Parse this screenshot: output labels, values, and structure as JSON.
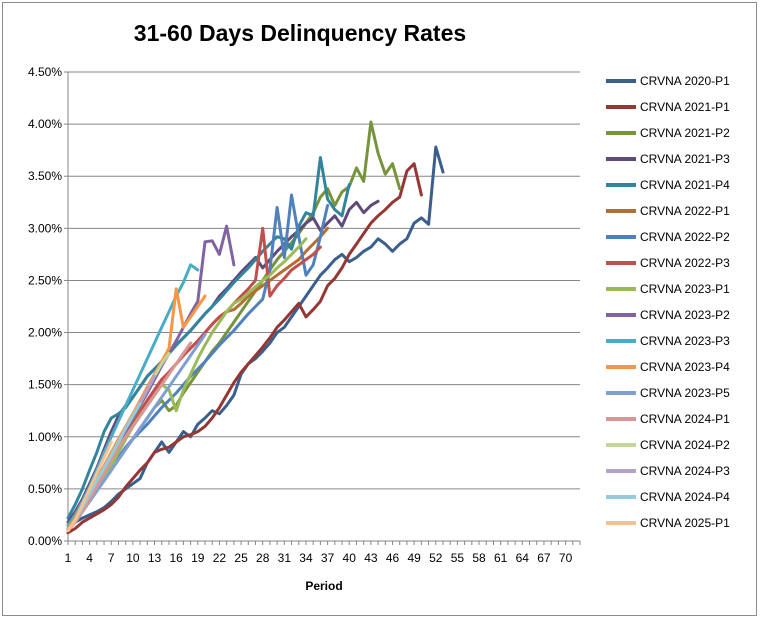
{
  "chart_data": {
    "type": "line",
    "title": "31-60 Days Delinquency Rates",
    "xlabel": "Period",
    "ylabel": "",
    "ylim": [
      0,
      0.045
    ],
    "yticks": [
      "0.00%",
      "0.50%",
      "1.00%",
      "1.50%",
      "2.00%",
      "2.50%",
      "3.00%",
      "3.50%",
      "4.00%",
      "4.50%"
    ],
    "xticks": [
      "1",
      "4",
      "7",
      "10",
      "13",
      "16",
      "19",
      "22",
      "25",
      "28",
      "31",
      "34",
      "37",
      "40",
      "43",
      "46",
      "49",
      "52",
      "55",
      "58",
      "61",
      "64",
      "67",
      "70"
    ],
    "grid": "horizontal",
    "legend_position": "right",
    "series": [
      {
        "name": "CRVNA 2020-P1",
        "color": "#3b5f8c",
        "values": [
          0.0012,
          0.0018,
          0.0022,
          0.0025,
          0.0028,
          0.0032,
          0.0038,
          0.0045,
          0.005,
          0.0055,
          0.006,
          0.0075,
          0.0085,
          0.0095,
          0.0085,
          0.0095,
          0.0105,
          0.01,
          0.0112,
          0.0118,
          0.0125,
          0.0122,
          0.013,
          0.014,
          0.016,
          0.017,
          0.0175,
          0.0182,
          0.019,
          0.02,
          0.0205,
          0.0215,
          0.0225,
          0.0235,
          0.0245,
          0.0255,
          0.0262,
          0.027,
          0.0275,
          0.0268,
          0.0272,
          0.0278,
          0.0282,
          0.029,
          0.0285,
          0.0278,
          0.0285,
          0.029,
          0.0305,
          0.031,
          0.0304,
          0.0378,
          0.0354
        ]
      },
      {
        "name": "CRVNA 2021-P1",
        "color": "#953735",
        "values": [
          0.0008,
          0.0012,
          0.0018,
          0.0022,
          0.0026,
          0.003,
          0.0035,
          0.0042,
          0.0052,
          0.006,
          0.0068,
          0.0075,
          0.0085,
          0.0088,
          0.009,
          0.0095,
          0.01,
          0.0102,
          0.0105,
          0.011,
          0.0118,
          0.0128,
          0.014,
          0.0152,
          0.0162,
          0.017,
          0.0178,
          0.0186,
          0.0195,
          0.0205,
          0.0212,
          0.022,
          0.0228,
          0.0215,
          0.0222,
          0.023,
          0.0245,
          0.0252,
          0.0262,
          0.0275,
          0.0285,
          0.0295,
          0.0305,
          0.0312,
          0.0318,
          0.0325,
          0.033,
          0.0355,
          0.0362,
          0.0332
        ]
      },
      {
        "name": "CRVNA 2021-P2",
        "color": "#77933c",
        "values": [
          0.0015,
          0.0022,
          0.003,
          0.0038,
          0.0048,
          0.0058,
          0.0068,
          0.0078,
          0.0088,
          0.0098,
          0.0108,
          0.0118,
          0.0128,
          0.0135,
          0.0125,
          0.013,
          0.0142,
          0.0152,
          0.0162,
          0.0172,
          0.0182,
          0.019,
          0.02,
          0.021,
          0.022,
          0.023,
          0.024,
          0.025,
          0.026,
          0.027,
          0.0278,
          0.0286,
          0.0295,
          0.0305,
          0.0315,
          0.033,
          0.0338,
          0.0322,
          0.0335,
          0.034,
          0.0358,
          0.0345,
          0.0402,
          0.0372,
          0.0352,
          0.0362,
          0.0338
        ]
      },
      {
        "name": "CRVNA 2021-P3",
        "color": "#604a7b",
        "values": [
          0.0018,
          0.0028,
          0.004,
          0.0055,
          0.007,
          0.0088,
          0.0105,
          0.012,
          0.013,
          0.0138,
          0.0148,
          0.0158,
          0.0165,
          0.0172,
          0.018,
          0.0188,
          0.0195,
          0.0202,
          0.021,
          0.0218,
          0.0225,
          0.0235,
          0.0242,
          0.025,
          0.0258,
          0.0265,
          0.0272,
          0.0262,
          0.027,
          0.0278,
          0.0285,
          0.0292,
          0.0298,
          0.0305,
          0.031,
          0.0298,
          0.0305,
          0.0312,
          0.0302,
          0.0318,
          0.0325,
          0.0315,
          0.0322,
          0.0326
        ]
      },
      {
        "name": "CRVNA 2021-P4",
        "color": "#31859c",
        "values": [
          0.0022,
          0.0035,
          0.005,
          0.0068,
          0.0085,
          0.0105,
          0.0118,
          0.0122,
          0.0128,
          0.0138,
          0.0148,
          0.0158,
          0.0165,
          0.0172,
          0.018,
          0.0188,
          0.0195,
          0.0202,
          0.021,
          0.0218,
          0.0225,
          0.0232,
          0.024,
          0.0248,
          0.0255,
          0.0262,
          0.027,
          0.0278,
          0.0285,
          0.0292,
          0.029,
          0.028,
          0.0302,
          0.0315,
          0.0312,
          0.0368,
          0.0328,
          0.0318,
          0.0312,
          0.0342
        ]
      },
      {
        "name": "CRVNA 2022-P1",
        "color": "#b66d31",
        "values": [
          0.0015,
          0.0025,
          0.0035,
          0.0048,
          0.006,
          0.0072,
          0.0085,
          0.0095,
          0.0105,
          0.0115,
          0.0125,
          0.0135,
          0.0145,
          0.0155,
          0.0162,
          0.017,
          0.0178,
          0.0185,
          0.0192,
          0.02,
          0.0208,
          0.0215,
          0.022,
          0.0222,
          0.0228,
          0.0235,
          0.024,
          0.0245,
          0.025,
          0.0255,
          0.026,
          0.0265,
          0.027,
          0.0278,
          0.0285,
          0.0292,
          0.03
        ]
      },
      {
        "name": "CRVNA 2022-P2",
        "color": "#4f81bd",
        "values": [
          0.0012,
          0.002,
          0.003,
          0.004,
          0.005,
          0.006,
          0.007,
          0.008,
          0.009,
          0.0098,
          0.0105,
          0.0112,
          0.012,
          0.0128,
          0.0135,
          0.0142,
          0.015,
          0.0158,
          0.0165,
          0.0172,
          0.018,
          0.0188,
          0.0195,
          0.0202,
          0.021,
          0.0218,
          0.0225,
          0.0232,
          0.026,
          0.032,
          0.0272,
          0.0332,
          0.0292,
          0.0255,
          0.0265,
          0.0292,
          0.0322
        ]
      },
      {
        "name": "CRVNA 2022-P3",
        "color": "#c0504d",
        "values": [
          0.0012,
          0.002,
          0.003,
          0.004,
          0.005,
          0.006,
          0.0072,
          0.0085,
          0.0098,
          0.011,
          0.0122,
          0.0135,
          0.0145,
          0.0155,
          0.0162,
          0.017,
          0.0178,
          0.0185,
          0.0192,
          0.02,
          0.0208,
          0.0215,
          0.022,
          0.0228,
          0.0235,
          0.0242,
          0.025,
          0.03,
          0.0235,
          0.0245,
          0.0252,
          0.026,
          0.0265,
          0.027,
          0.0275,
          0.0282
        ]
      },
      {
        "name": "CRVNA 2023-P1",
        "color": "#9bbb59",
        "values": [
          0.0012,
          0.002,
          0.003,
          0.004,
          0.005,
          0.006,
          0.0072,
          0.0085,
          0.0098,
          0.011,
          0.012,
          0.013,
          0.014,
          0.015,
          0.0145,
          0.0125,
          0.0145,
          0.016,
          0.0175,
          0.0188,
          0.02,
          0.021,
          0.022,
          0.0228,
          0.0232,
          0.0238,
          0.0244,
          0.025,
          0.0255,
          0.0262,
          0.0268,
          0.0275,
          0.0282,
          0.029
        ]
      },
      {
        "name": "CRVNA 2023-P2",
        "color": "#8064a2",
        "values": [
          0.0012,
          0.002,
          0.003,
          0.0042,
          0.0055,
          0.0068,
          0.008,
          0.0092,
          0.0105,
          0.0118,
          0.013,
          0.0142,
          0.0155,
          0.0168,
          0.018,
          0.0192,
          0.0205,
          0.0218,
          0.023,
          0.0287,
          0.0288,
          0.0275,
          0.0302,
          0.0265
        ]
      },
      {
        "name": "CRVNA 2023-P3",
        "color": "#4bacc6",
        "values": [
          0.0015,
          0.0025,
          0.0038,
          0.0052,
          0.0068,
          0.0085,
          0.01,
          0.0115,
          0.013,
          0.0145,
          0.016,
          0.0175,
          0.019,
          0.0205,
          0.022,
          0.0235,
          0.0248,
          0.0265,
          0.026
        ]
      },
      {
        "name": "CRVNA 2023-P4",
        "color": "#f79646",
        "values": [
          0.0012,
          0.0022,
          0.0035,
          0.0048,
          0.006,
          0.0072,
          0.0085,
          0.0098,
          0.011,
          0.0122,
          0.0135,
          0.0148,
          0.016,
          0.0172,
          0.0185,
          0.0242,
          0.0205,
          0.0215,
          0.0225,
          0.0235
        ]
      },
      {
        "name": "CRVNA 2023-P5",
        "color": "#7f9fd4",
        "values": [
          0.001,
          0.0018,
          0.0028,
          0.0038,
          0.0048,
          0.0058,
          0.0068,
          0.0078,
          0.0088,
          0.0098,
          0.0108,
          0.0118,
          0.0128,
          0.0138,
          0.0148,
          0.0158,
          0.0168,
          0.0178,
          0.0188,
          0.0198
        ]
      },
      {
        "name": "CRVNA 2024-P1",
        "color": "#d99694",
        "values": [
          0.001,
          0.0018,
          0.0028,
          0.004,
          0.0052,
          0.0065,
          0.0078,
          0.009,
          0.01,
          0.011,
          0.012,
          0.013,
          0.014,
          0.015,
          0.016,
          0.017,
          0.018,
          0.019
        ]
      },
      {
        "name": "CRVNA 2024-P2",
        "color": "#c3d69b",
        "values": [
          0.001,
          0.002,
          0.0032,
          0.0045,
          0.0058,
          0.007,
          0.0082,
          0.0095,
          0.0108,
          0.012,
          0.0132,
          0.0145,
          0.0158,
          0.017,
          0.018
        ]
      },
      {
        "name": "CRVNA 2024-P3",
        "color": "#b3a2c7",
        "values": [
          0.001,
          0.002,
          0.0032,
          0.0045,
          0.0058,
          0.007,
          0.0082,
          0.0095,
          0.0108,
          0.012,
          0.0132,
          0.0145,
          0.0158
        ]
      },
      {
        "name": "CRVNA 2024-P4",
        "color": "#93cddd",
        "values": [
          0.001,
          0.002,
          0.0032,
          0.0045,
          0.0058,
          0.007,
          0.0082,
          0.0095,
          0.0108,
          0.012,
          0.0132
        ]
      },
      {
        "name": "CRVNA 2025-P1",
        "color": "#fac090",
        "values": [
          0.001,
          0.002,
          0.0035,
          0.005,
          0.0065,
          0.008,
          0.0095
        ]
      }
    ]
  }
}
